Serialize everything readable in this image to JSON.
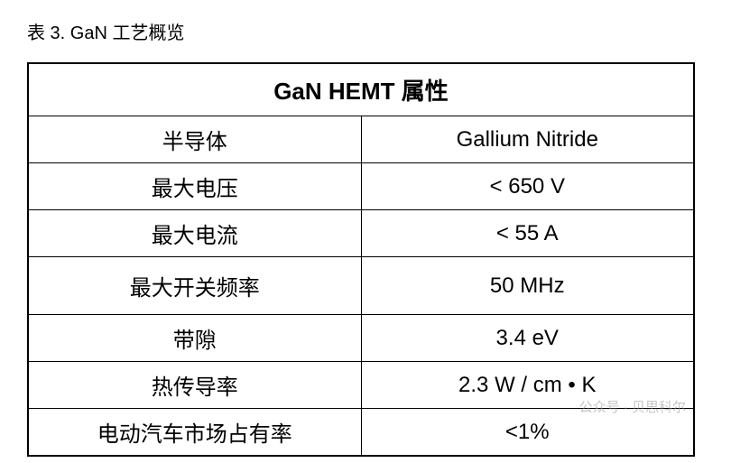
{
  "caption": "表 3. GaN 工艺概览",
  "table": {
    "header": "GaN HEMT 属性",
    "rows": [
      {
        "label": "半导体",
        "value": "Gallium Nitride"
      },
      {
        "label": "最大电压",
        "value": "< 650 V"
      },
      {
        "label": "最大电流",
        "value": "< 55 A"
      },
      {
        "label": "最大开关频率",
        "value": "50 MHz"
      },
      {
        "label": "带隙",
        "value": "3.4 eV"
      },
      {
        "label": "热传导率",
        "value": "2.3 W / cm • K"
      },
      {
        "label": "电动汽车市场占有率",
        "value": "<1%"
      }
    ],
    "tall_row_index": 3,
    "border_color": "#000000",
    "background_color": "#ffffff",
    "header_fontsize": 26,
    "header_fontweight": "bold",
    "cell_fontsize": 24,
    "cell_color": "#000000",
    "column_widths_pct": [
      50,
      50
    ]
  },
  "watermark": "公众号 · 贝思科尔"
}
